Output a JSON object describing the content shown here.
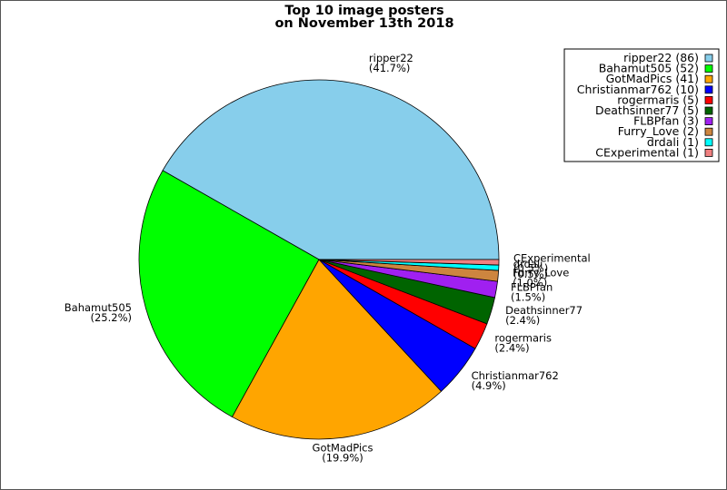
{
  "chart_data": {
    "type": "pie",
    "title_line1": "Top 10 image posters",
    "title_line2": "on November 13th 2018",
    "slices": [
      {
        "label": "ripper22",
        "value": 86,
        "percent": "(41.7%)",
        "color": "#87CEEB"
      },
      {
        "label": "Bahamut505",
        "value": 52,
        "percent": "(25.2%)",
        "color": "#00FF00"
      },
      {
        "label": "GotMadPics",
        "value": 41,
        "percent": "(19.9%)",
        "color": "#FFA500"
      },
      {
        "label": "Christianmar762",
        "value": 10,
        "percent": "(4.9%)",
        "color": "#0000FF"
      },
      {
        "label": "rogermaris",
        "value": 5,
        "percent": "(2.4%)",
        "color": "#FF0000"
      },
      {
        "label": "Deathsinner77",
        "value": 5,
        "percent": "(2.4%)",
        "color": "#006400"
      },
      {
        "label": "FLBPfan",
        "value": 3,
        "percent": "(1.5%)",
        "color": "#A020F0"
      },
      {
        "label": "Furry_Love",
        "value": 2,
        "percent": "(1.0%)",
        "color": "#CD853F"
      },
      {
        "label": "drdali",
        "value": 1,
        "percent": "(0.5%)",
        "color": "#00FFFF"
      },
      {
        "label": "CExperimental",
        "value": 1,
        "percent": "(0.5%)",
        "color": "#F08080"
      }
    ],
    "legend": [
      "ripper22 (86)",
      "Bahamut505 (52)",
      "GotMadPics (41)",
      "Christianmar762 (10)",
      "rogermaris (5)",
      "Deathsinner77 (5)",
      "FLBPfan (3)",
      "Furry_Love (2)",
      "drdali (1)",
      "CExperimental (1)"
    ],
    "legend_placement": "top-right"
  }
}
